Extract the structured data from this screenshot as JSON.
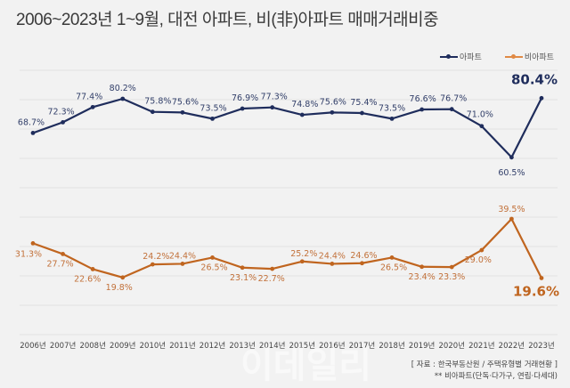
{
  "title": "2006~2023년 1~9월, 대전 아파트, 비(非)아파트 매매거래비중",
  "legend": [
    {
      "label": "아파트",
      "color": "#1f2d5c"
    },
    {
      "label": "비아파트",
      "color": "#c0651f"
    }
  ],
  "source": {
    "line1": "[ 자료 : 한국부동산원 / 주택유형별 거래현황 ]",
    "line2": "** 비아파트(단독·다가구, 연립·다세대)"
  },
  "watermark": "이데일리",
  "chart_data": {
    "type": "line",
    "title": "2006~2023년 1~9월, 대전 아파트, 비(非)아파트 매매거래비중",
    "xlabel": "",
    "ylabel": "",
    "grid": true,
    "legend_position": "top-right",
    "categories": [
      "2006년",
      "2007년",
      "2008년",
      "2009년",
      "2010년",
      "2011년",
      "2012년",
      "2013년",
      "2014년",
      "2015년",
      "2016년",
      "2017년",
      "2018년",
      "2019년",
      "2020년",
      "2021년",
      "2022년",
      "2023년"
    ],
    "series": [
      {
        "name": "아파트",
        "color": "#1f2d5c",
        "values": [
          68.7,
          72.3,
          77.4,
          80.2,
          75.8,
          75.6,
          73.5,
          76.9,
          77.3,
          74.8,
          75.6,
          75.4,
          73.5,
          76.6,
          76.7,
          71.0,
          60.5,
          80.4
        ],
        "labels": [
          "68.7%",
          "72.3%",
          "77.4%",
          "80.2%",
          "75.8%",
          "75.6%",
          "73.5%",
          "76.9%",
          "77.3%",
          "74.8%",
          "75.6%",
          "75.4%",
          "73.5%",
          "76.6%",
          "76.7%",
          "71.0%",
          "60.5%",
          "80.4%"
        ]
      },
      {
        "name": "비아파트",
        "color": "#c0651f",
        "values": [
          31.3,
          27.7,
          22.6,
          19.8,
          24.2,
          24.4,
          26.5,
          23.1,
          22.7,
          25.2,
          24.4,
          24.6,
          26.5,
          23.4,
          23.3,
          29.0,
          39.5,
          19.6
        ],
        "labels": [
          "31.3%",
          "27.7%",
          "22.6%",
          "19.8%",
          "24.2%",
          "24.4%",
          "26.5%",
          "23.1%",
          "22.7%",
          "25.2%",
          "24.4%",
          "24.6%",
          "26.5%",
          "23.4%",
          "23.3%",
          "29.0%",
          "39.5%",
          "19.6%"
        ]
      }
    ],
    "highlight_last": true
  }
}
